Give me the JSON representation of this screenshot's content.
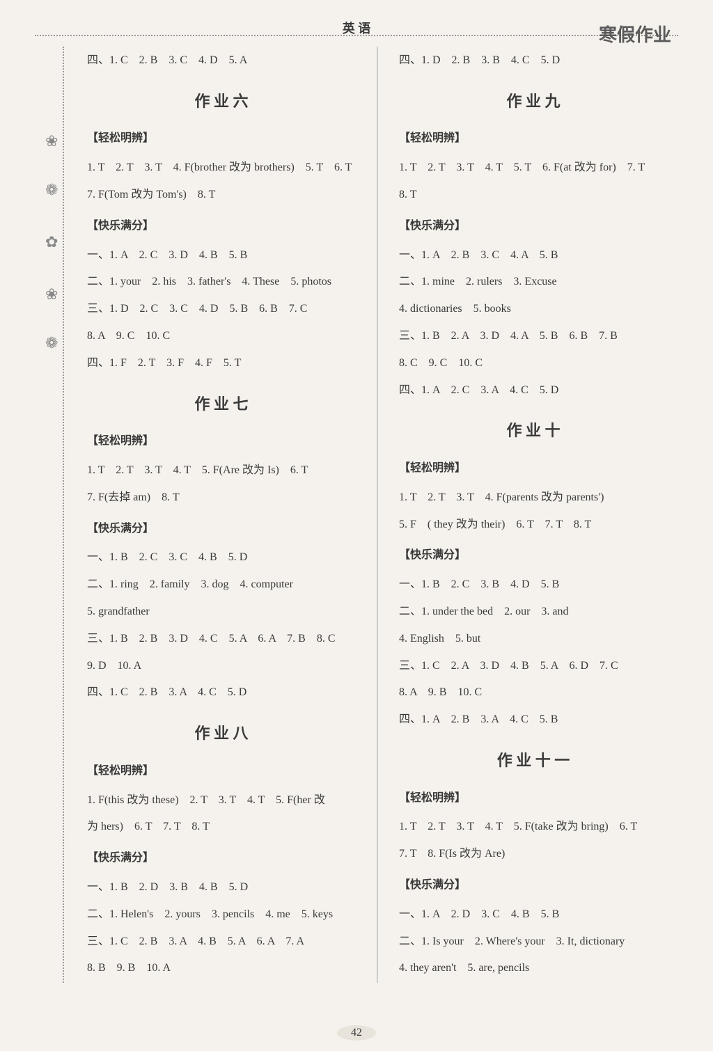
{
  "header": {
    "subject": "英 语",
    "title_right": "寒假作业"
  },
  "left": {
    "top_line": "四、1. C　2. B　3. C　4. D　5. A",
    "hw6": {
      "title": "作 业 六",
      "s1_title": "【轻松明辨】",
      "s1_l1": "1. T　2. T　3. T　4. F(brother 改为 brothers)　5. T　6. T",
      "s1_l2": "7. F(Tom 改为 Tom's)　8. T",
      "s2_title": "【快乐满分】",
      "s2_l1": "一、1. A　2. C　3. D　4. B　5. B",
      "s2_l2": "二、1. your　2. his　3. father's　4. These　5. photos",
      "s2_l3": "三、1. D　2. C　3. C　4. D　5. B　6. B　7. C",
      "s2_l4": "8. A　9. C　10. C",
      "s2_l5": "四、1. F　2. T　3. F　4. F　5. T"
    },
    "hw7": {
      "title": "作 业 七",
      "s1_title": "【轻松明辨】",
      "s1_l1": "1. T　2. T　3. T　4. T　5. F(Are 改为 Is)　6. T",
      "s1_l2": "7. F(去掉 am)　8. T",
      "s2_title": "【快乐满分】",
      "s2_l1": "一、1. B　2. C　3. C　4. B　5. D",
      "s2_l2": "二、1. ring　2. family　3. dog　4. computer",
      "s2_l3": "5. grandfather",
      "s2_l4": "三、1. B　2. B　3. D　4. C　5. A　6. A　7. B　8. C",
      "s2_l5": "9. D　10. A",
      "s2_l6": "四、1. C　2. B　3. A　4. C　5. D"
    },
    "hw8": {
      "title": "作 业 八",
      "s1_title": "【轻松明辨】",
      "s1_l1": "1. F(this 改为 these)　2. T　3. T　4. T　5. F(her 改",
      "s1_l2": "为 hers)　6. T　7. T　8. T",
      "s2_title": "【快乐满分】",
      "s2_l1": "一、1. B　2. D　3. B　4. B　5. D",
      "s2_l2": "二、1. Helen's　2. yours　3. pencils　4. me　5. keys",
      "s2_l3": "三、1. C　2. B　3. A　4. B　5. A　6. A　7. A",
      "s2_l4": "8. B　9. B　10. A"
    }
  },
  "right": {
    "top_line": "四、1. D　2. B　3. B　4. C　5. D",
    "hw9": {
      "title": "作 业 九",
      "s1_title": "【轻松明辨】",
      "s1_l1": "1. T　2. T　3. T　4. T　5. T　6. F(at 改为 for)　7. T",
      "s1_l2": "8. T",
      "s2_title": "【快乐满分】",
      "s2_l1": "一、1. A　2. B　3. C　4. A　5. B",
      "s2_l2": "二、1. mine　2. rulers　3. Excuse",
      "s2_l3": "4. dictionaries　5. books",
      "s2_l4": "三、1. B　2. A　3. D　4. A　5. B　6. B　7. B",
      "s2_l5": "8. C　9. C　10. C",
      "s2_l6": "四、1. A　2. C　3. A　4. C　5. D"
    },
    "hw10": {
      "title": "作 业 十",
      "s1_title": "【轻松明辨】",
      "s1_l1": "1. T　2. T　3. T　4. F(parents 改为 parents')",
      "s1_l2": "5. F　( they 改为 their)　6. T　7. T　8. T",
      "s2_title": "【快乐满分】",
      "s2_l1": "一、1. B　2. C　3. B　4. D　5. B",
      "s2_l2": "二、1. under the bed　2. our　3. and",
      "s2_l3": "4. English　5. but",
      "s2_l4": "三、1. C　2. A　3. D　4. B　5. A　6. D　7. C",
      "s2_l5": "8. A　9. B　10. C",
      "s2_l6": "四、1. A　2. B　3. A　4. C　5. B"
    },
    "hw11": {
      "title": "作 业 十 一",
      "s1_title": "【轻松明辨】",
      "s1_l1": "1. T　2. T　3. T　4. T　5. F(take 改为 bring)　6. T",
      "s1_l2": "7. T　8. F(Is 改为 Are)",
      "s2_title": "【快乐满分】",
      "s2_l1": "一、1. A　2. D　3. C　4. B　5. B",
      "s2_l2": "二、1. Is your　2. Where's your　3. It, dictionary",
      "s2_l3": "4. they aren't　5. are, pencils"
    }
  },
  "page_number": "42"
}
